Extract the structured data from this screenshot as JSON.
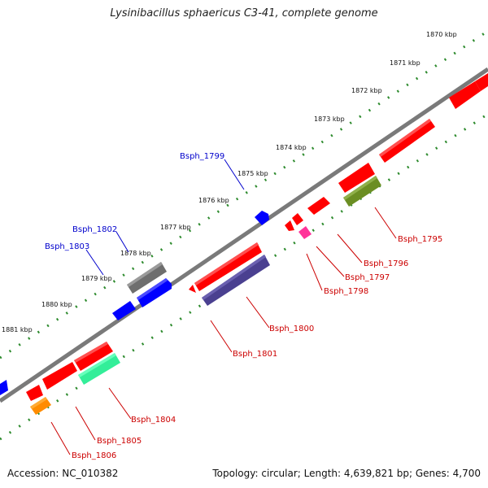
{
  "title": "Lysinibacillus sphaericus C3-41, complete genome",
  "footer": {
    "accession": "Accession: NC_010382",
    "topology": "Topology: circular; Length: 4,639,821 bp; Genes: 4,700"
  },
  "ticks": [
    "1870 kbp",
    "1871 kbp",
    "1872 kbp",
    "1873 kbp",
    "1874 kbp",
    "1875 kbp",
    "1876 kbp",
    "1877 kbp",
    "1878 kbp",
    "1879 kbp",
    "1880 kbp",
    "1881 kbp"
  ],
  "genes_blue": [
    "Bsph_1799",
    "Bsph_1802",
    "Bsph_1803"
  ],
  "genes_red": [
    "Bsph_1795",
    "Bsph_1796",
    "Bsph_1797",
    "Bsph_1798",
    "Bsph_1800",
    "Bsph_1801",
    "Bsph_1804",
    "Bsph_1805",
    "Bsph_1806"
  ],
  "colors": {
    "backbone": "#808080",
    "dotted_track": "#2e8b2e",
    "label_blue": "#0000cc",
    "label_red": "#cc0000",
    "gene_red": "#ff0000",
    "gene_blue": "#0000ff",
    "gene_gray": "#707070",
    "gene_navy": "#4a4090",
    "gene_olive": "#6b8e23",
    "gene_teal": "#33ee99",
    "gene_orange": "#ff8c00",
    "gene_pink": "#ff3399"
  }
}
